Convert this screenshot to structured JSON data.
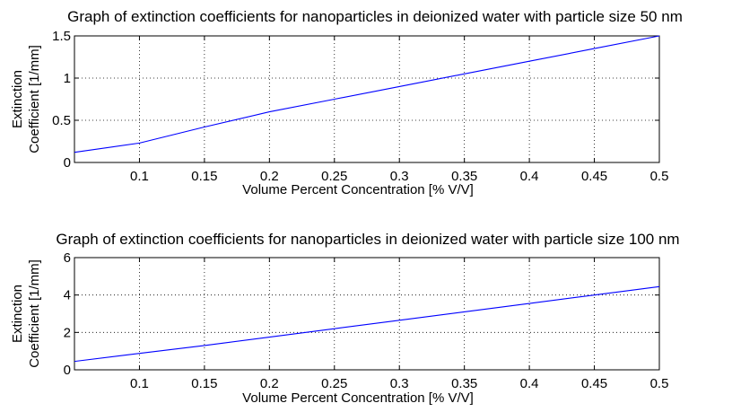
{
  "chart_data": [
    {
      "type": "line",
      "title": "Graph of extinction coefficients for nanoparticles in deionized water with particle size 50 nm",
      "xlabel": "Volume Percent Concentration [% V/V]",
      "ylabel_lines": [
        "Extinction",
        "Coefficient [1/mm]"
      ],
      "xlim": [
        0.05,
        0.5
      ],
      "ylim": [
        0,
        1.5
      ],
      "xticks": [
        0.1,
        0.15,
        0.2,
        0.25,
        0.3,
        0.35,
        0.4,
        0.45,
        0.5
      ],
      "xtick_labels": [
        "0.1",
        "0.15",
        "0.2",
        "0.25",
        "0.3",
        "0.35",
        "0.4",
        "0.45",
        "0.5"
      ],
      "yticks": [
        0,
        0.5,
        1,
        1.5
      ],
      "ytick_labels": [
        "0",
        "0.5",
        "1",
        "1.5"
      ],
      "grid": true,
      "line_color": "#0000ff",
      "series": [
        {
          "x": [
            0.05,
            0.1,
            0.15,
            0.2,
            0.25,
            0.3,
            0.35,
            0.4,
            0.45,
            0.5
          ],
          "y": [
            0.12,
            0.23,
            0.42,
            0.6,
            0.75,
            0.9,
            1.05,
            1.2,
            1.35,
            1.5
          ]
        }
      ]
    },
    {
      "type": "line",
      "title": "Graph of extinction coefficients for nanoparticles in deionized water with particle size 100 nm",
      "xlabel": "Volume Percent Concentration [% V/V]",
      "ylabel_lines": [
        "Extinction",
        "Coefficient [1/mm]"
      ],
      "xlim": [
        0.05,
        0.5
      ],
      "ylim": [
        0,
        6
      ],
      "xticks": [
        0.1,
        0.15,
        0.2,
        0.25,
        0.3,
        0.35,
        0.4,
        0.45,
        0.5
      ],
      "xtick_labels": [
        "0.1",
        "0.15",
        "0.2",
        "0.25",
        "0.3",
        "0.35",
        "0.4",
        "0.45",
        "0.5"
      ],
      "yticks": [
        0,
        2,
        4,
        6
      ],
      "ytick_labels": [
        "0",
        "2",
        "4",
        "6"
      ],
      "grid": true,
      "line_color": "#0000ff",
      "series": [
        {
          "x": [
            0.05,
            0.1,
            0.15,
            0.2,
            0.25,
            0.3,
            0.35,
            0.4,
            0.45,
            0.5
          ],
          "y": [
            0.45,
            0.88,
            1.3,
            1.75,
            2.2,
            2.65,
            3.1,
            3.55,
            4.0,
            4.45
          ]
        }
      ]
    }
  ]
}
